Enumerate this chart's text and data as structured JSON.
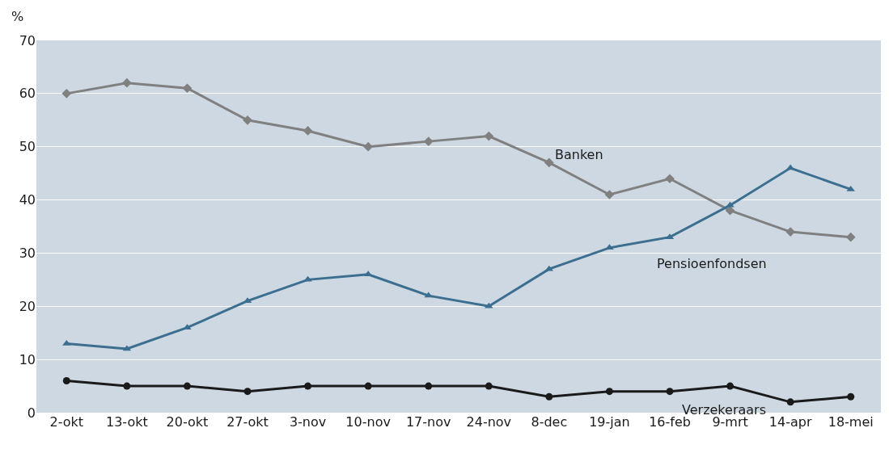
{
  "chart_data": {
    "type": "line",
    "ylabel": "%",
    "categories": [
      "2-okt",
      "13-okt",
      "20-okt",
      "27-okt",
      "3-nov",
      "10-nov",
      "17-nov",
      "24-nov",
      "8-dec",
      "19-jan",
      "16-feb",
      "9-mrt",
      "14-apr",
      "18-mei"
    ],
    "series": [
      {
        "name": "Banken",
        "color": "#808080",
        "marker": "diamond",
        "values": [
          60,
          62,
          61,
          55,
          53,
          50,
          51,
          52,
          47,
          41,
          44,
          38,
          34,
          33
        ]
      },
      {
        "name": "Pensioenfondsen",
        "color": "#3b6e8f",
        "marker": "triangle",
        "values": [
          13,
          12,
          16,
          21,
          25,
          26,
          22,
          20,
          27,
          31,
          33,
          39,
          46,
          42
        ]
      },
      {
        "name": "Verzekeraars",
        "color": "#1a1a1a",
        "marker": "circle",
        "values": [
          6,
          5,
          5,
          4,
          5,
          5,
          5,
          5,
          3,
          4,
          4,
          5,
          2,
          3
        ]
      }
    ],
    "ylim": [
      0,
      70
    ],
    "yticks": [
      0,
      10,
      20,
      30,
      40,
      50,
      60,
      70
    ],
    "grid": "y",
    "legend": false
  }
}
